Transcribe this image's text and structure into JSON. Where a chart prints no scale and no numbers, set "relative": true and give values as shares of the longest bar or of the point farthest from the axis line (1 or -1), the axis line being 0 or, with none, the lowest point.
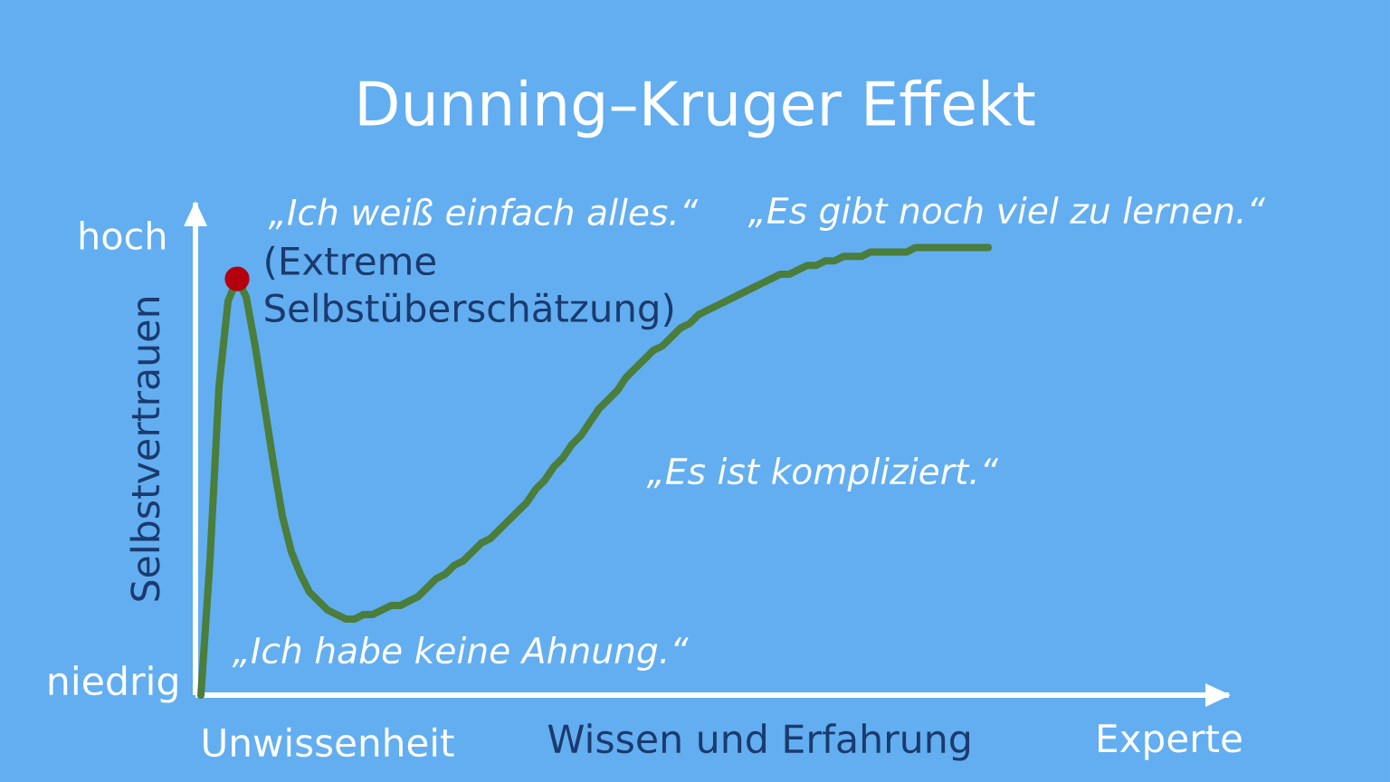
{
  "chart_data": {
    "type": "line",
    "title": "Dunning–Kruger Effekt",
    "xlabel": "Wissen und Erfahrung",
    "ylabel": "Selbstvertrauen",
    "relative": true,
    "categories": [
      null,
      null,
      null,
      null,
      null,
      null,
      null,
      null,
      null,
      null,
      null,
      null,
      null,
      null,
      "Unwissenheit",
      null,
      null,
      null,
      null,
      null,
      null,
      null,
      null,
      null,
      null,
      null,
      null,
      null,
      null,
      null,
      null,
      null,
      null,
      null,
      null,
      null,
      null,
      null,
      null,
      null,
      null,
      null,
      null,
      null,
      null,
      null,
      null,
      null,
      null,
      null,
      null,
      null,
      null,
      null,
      null,
      null,
      null,
      null,
      null,
      null,
      null,
      null,
      null,
      null,
      null,
      null,
      null,
      null,
      null,
      null,
      null,
      null,
      null,
      null,
      null,
      null,
      null,
      null,
      null,
      null,
      null,
      null,
      null,
      null,
      null,
      null,
      null,
      null,
      null,
      null,
      null,
      null,
      null,
      null,
      null,
      null,
      null,
      null,
      null,
      null,
      null,
      null,
      null,
      null,
      null,
      null,
      null,
      "Experte"
    ],
    "series": [
      {
        "color": "#4b7d3b",
        "values": [
          0,
          0.3,
          0.69,
          0.88,
          0.93,
          0.89,
          0.78,
          0.65,
          0.52,
          0.4,
          0.32,
          0.27,
          0.23,
          0.21,
          0.19,
          0.18,
          0.17,
          0.17,
          0.18,
          0.18,
          0.19,
          0.2,
          0.2,
          0.21,
          0.22,
          0.24,
          0.26,
          0.27,
          0.29,
          0.3,
          0.32,
          0.34,
          0.35,
          0.37,
          0.39,
          0.41,
          0.43,
          0.46,
          0.48,
          0.51,
          0.53,
          0.56,
          0.58,
          0.61,
          0.64,
          0.66,
          0.68,
          0.71,
          0.73,
          0.75,
          0.77,
          0.78,
          0.8,
          0.82,
          0.83,
          0.85,
          0.86,
          0.87,
          0.88,
          0.89,
          0.9,
          0.91,
          0.92,
          0.93,
          0.94,
          0.94,
          0.95,
          0.96,
          0.96,
          0.97,
          0.97,
          0.98,
          0.98,
          0.98,
          0.99,
          0.99,
          0.99,
          0.99,
          0.99,
          1.0,
          1.0,
          1.0,
          1.0,
          1.0,
          1.0,
          1.0,
          1.0,
          1.0,
          null,
          null,
          null,
          null,
          null,
          null,
          null,
          null,
          null,
          null,
          null,
          null,
          null,
          null,
          null,
          null,
          null,
          null,
          null,
          null
        ]
      },
      {
        "type": "scatter",
        "color": "#b3000c",
        "values": [
          null,
          null,
          null,
          null,
          0.93,
          null,
          null,
          null,
          null,
          null,
          null,
          null,
          null,
          null,
          null,
          null,
          null,
          null,
          null,
          null,
          null,
          null,
          null,
          null,
          null,
          null,
          null,
          null,
          null,
          null,
          null,
          null,
          null,
          null,
          null,
          null,
          null,
          null,
          null,
          null,
          null,
          null,
          null,
          null,
          null,
          null,
          null,
          null,
          null,
          null,
          null,
          null,
          null,
          null,
          null,
          null,
          null,
          null,
          null,
          null,
          null,
          null,
          null,
          null,
          null,
          null,
          null,
          null,
          null,
          null,
          null,
          null,
          null,
          null,
          null,
          null,
          null,
          null,
          null,
          null,
          null,
          null,
          null,
          null,
          null,
          null,
          null,
          null,
          null,
          null,
          null,
          null,
          null,
          null,
          null,
          null,
          null,
          null,
          null,
          null,
          null,
          null,
          null,
          null,
          null,
          null,
          null,
          null
        ]
      }
    ],
    "annotations": [
      "hoch",
      "„Ich weiß einfach alles.“",
      "(Extreme Selbstüberschätzung)",
      "„Es gibt noch viel zu lernen.“",
      "„Es ist kompliziert.“",
      "„Ich habe keine Ahnung.“",
      "niedrig"
    ]
  }
}
